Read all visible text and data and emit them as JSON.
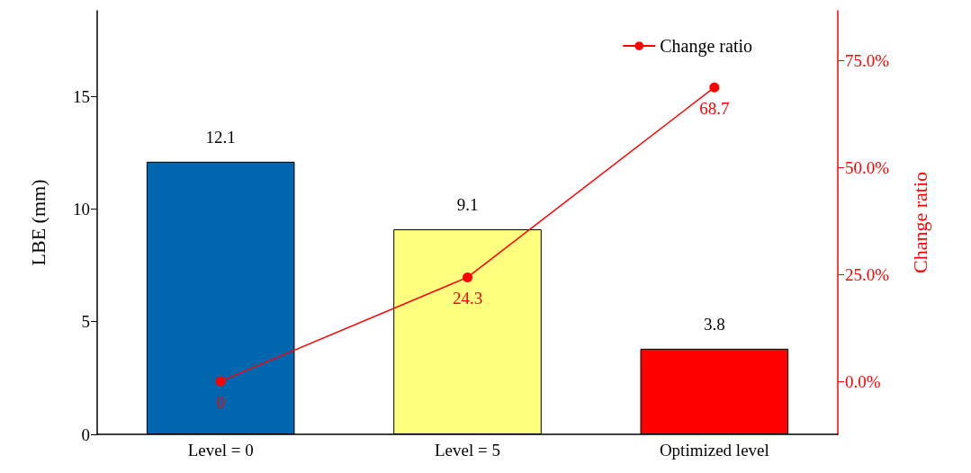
{
  "chart_data": {
    "type": "bar",
    "ylabel": "LBE (mm)",
    "y2label": "Change ratio",
    "categories": [
      "Level = 0",
      "Level = 5",
      "Optimized level"
    ],
    "series": [
      {
        "colors": [
          "#0066ae",
          "#ffff80",
          "#ff0000"
        ],
        "values": [
          12.1,
          9.1,
          3.8
        ],
        "data_labels": true
      },
      {
        "type": "line",
        "name": "Change ratio",
        "color": "#ff0000",
        "axis": "y2",
        "values": [
          0,
          24.3,
          68.7
        ],
        "value_labels": [
          "0",
          "24.3",
          "68.7"
        ],
        "marker": "circle",
        "line_style": "solid"
      }
    ],
    "ylim": [
      0,
      18.8
    ],
    "yticks": [
      0,
      5,
      10,
      15
    ],
    "y2lim": [
      -12.4,
      86.6
    ],
    "y2ticks": [
      {
        "value": 0,
        "label": "0.0%"
      },
      {
        "value": 25,
        "label": "25.0%"
      },
      {
        "value": 50,
        "label": "50.0%"
      },
      {
        "value": 75,
        "label": "75.0%"
      }
    ],
    "grid": false,
    "legend": "top right"
  }
}
